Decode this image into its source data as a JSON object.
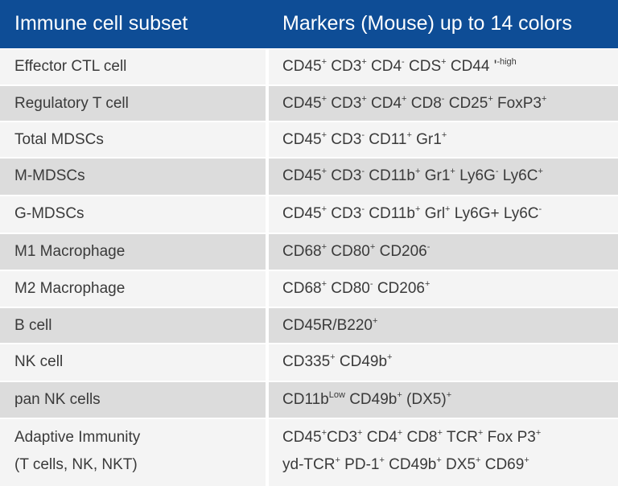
{
  "header": {
    "col1": "Immune cell subset",
    "col2": "Markers (Mouse) up to 14 colors"
  },
  "rows": [
    {
      "subset": "Effector CTL cell",
      "markers": [
        [
          "CD45",
          "+"
        ],
        [
          " CD3",
          "+"
        ],
        [
          " CD4",
          "-"
        ],
        [
          " CDS",
          "+"
        ],
        [
          " CD44 '",
          "-high"
        ]
      ]
    },
    {
      "subset": "Regulatory T cell",
      "markers": [
        [
          "CD45",
          "+"
        ],
        [
          " CD3",
          "+"
        ],
        [
          " CD4",
          "+"
        ],
        [
          " CD8",
          "-"
        ],
        [
          " CD25",
          "+"
        ],
        [
          " FoxP3",
          "+"
        ]
      ]
    },
    {
      "subset": "Total MDSCs",
      "markers": [
        [
          "CD45",
          "+"
        ],
        [
          " CD3",
          "-"
        ],
        [
          " CD11",
          "+"
        ],
        [
          " Gr1",
          "+"
        ]
      ]
    },
    {
      "subset": "M-MDSCs",
      "markers": [
        [
          "CD45",
          "+"
        ],
        [
          " CD3",
          "-"
        ],
        [
          " CD11b",
          "+"
        ],
        [
          " Gr1",
          "+"
        ],
        [
          " Ly6G",
          "-"
        ],
        [
          " Ly6C",
          "+"
        ]
      ]
    },
    {
      "subset": "G-MDSCs",
      "markers": [
        [
          "CD45",
          "+"
        ],
        [
          " CD3",
          "-"
        ],
        [
          " CD11b",
          "+"
        ],
        [
          " Grl",
          "+"
        ],
        [
          " Ly6G+ Ly6C",
          "-"
        ]
      ]
    },
    {
      "subset": "M1 Macrophage",
      "markers": [
        [
          "CD68",
          "+"
        ],
        [
          " CD80",
          "+"
        ],
        [
          " CD206",
          "-"
        ]
      ]
    },
    {
      "subset": "M2 Macrophage",
      "markers": [
        [
          "CD68",
          "+"
        ],
        [
          " CD80",
          "-"
        ],
        [
          " CD206",
          "+"
        ]
      ]
    },
    {
      "subset": "B cell",
      "markers": [
        [
          "CD45R/B220",
          "+"
        ]
      ]
    },
    {
      "subset": "NK cell",
      "markers": [
        [
          "CD335",
          "+"
        ],
        [
          " CD49b",
          "+"
        ]
      ]
    },
    {
      "subset": "pan NK cells",
      "markers": [
        [
          "CD11b",
          "Low"
        ],
        [
          " CD49b",
          "+"
        ],
        [
          " (DX5)",
          "+"
        ]
      ]
    },
    {
      "subset": "Adaptive Immunity",
      "subset2": "(T cells, NK, NKT)",
      "markers": [
        [
          "CD45",
          "+"
        ],
        [
          "CD3",
          "+"
        ],
        [
          " CD4",
          "+"
        ],
        [
          " CD8",
          "+"
        ],
        [
          " TCR",
          "+"
        ],
        [
          " Fox P3",
          "+"
        ]
      ],
      "markers2": [
        [
          "yd-TCR",
          "+"
        ],
        [
          " PD-1",
          "+"
        ],
        [
          " CD49b",
          "+"
        ],
        [
          " DX5",
          "+"
        ],
        [
          " CD69",
          "+"
        ]
      ]
    }
  ],
  "colors": {
    "header_bg": "#0e4d96",
    "row_light": "#f4f4f4",
    "row_dark": "#dcdcdc"
  }
}
